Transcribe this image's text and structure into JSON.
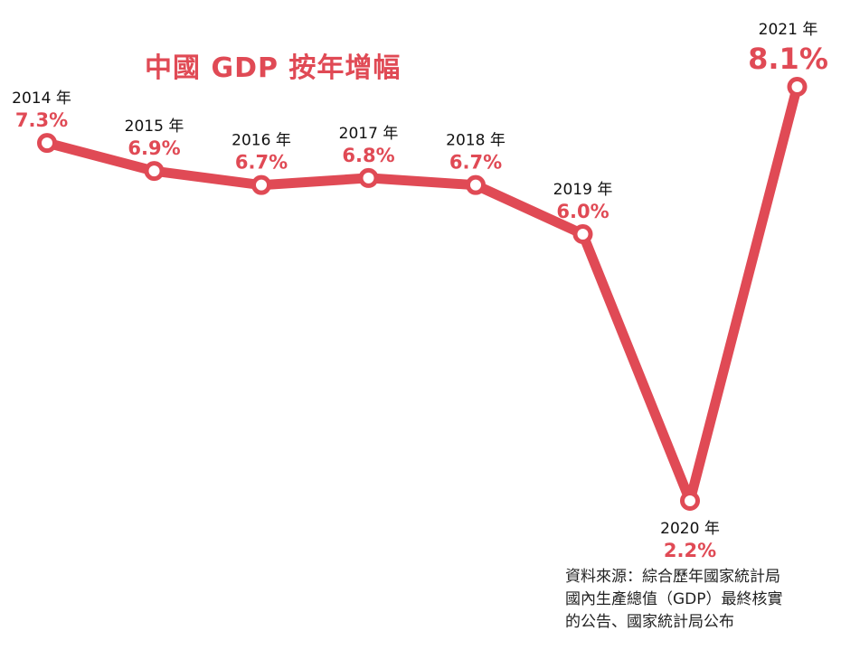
{
  "title": "中國 GDP 按年增幅",
  "colors": {
    "accent": "#e04a55",
    "marker_fill": "#ffffff",
    "text": "#111111"
  },
  "chart_data": {
    "type": "line",
    "title": "中國 GDP 按年增幅",
    "xlabel": "",
    "ylabel": "",
    "grid": false,
    "legend": "none",
    "ylim": [
      2,
      8.4
    ],
    "x": [
      "2014",
      "2015",
      "2016",
      "2017",
      "2018",
      "2019",
      "2020",
      "2021"
    ],
    "year_labels": [
      "2014 年",
      "2015 年",
      "2016 年",
      "2017 年",
      "2018 年",
      "2019 年",
      "2020 年",
      "2021 年"
    ],
    "values": [
      7.3,
      6.9,
      6.7,
      6.8,
      6.7,
      6.0,
      2.2,
      8.1
    ],
    "value_labels": [
      "7.3%",
      "6.9%",
      "6.7%",
      "6.8%",
      "6.7%",
      "6.0%",
      "2.2%",
      "8.1%"
    ]
  },
  "source": {
    "lines": [
      "資料來源：綜合歷年國家統計局",
      "國內生產總值（GDP）最終核實",
      "的公告、國家統計局公布"
    ]
  }
}
